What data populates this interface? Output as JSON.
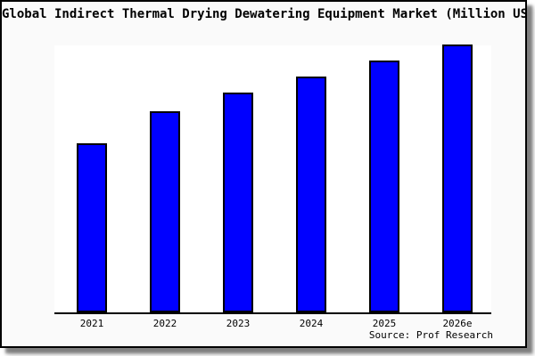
{
  "window": {
    "background": "#fafafa",
    "border_color": "#000000",
    "plot_background": "#ffffff"
  },
  "chart_data": {
    "type": "bar",
    "title": "Global Indirect Thermal Drying Dewatering Equipment Market (Million US$)",
    "categories": [
      "2021",
      "2022",
      "2023",
      "2024",
      "2025",
      "2026e"
    ],
    "values": [
      63,
      75,
      82,
      88,
      94,
      100
    ],
    "value_note": "y-axis has no ticks or labels; values estimated relative to tallest bar (2026e = 100)",
    "xlabel": "",
    "ylabel": "",
    "grid": false,
    "legend": false,
    "bar_color": "#0000ff",
    "bar_edge_color": "#000000",
    "axis_line_color": "#000000",
    "source_label": "Source: Prof Research"
  }
}
